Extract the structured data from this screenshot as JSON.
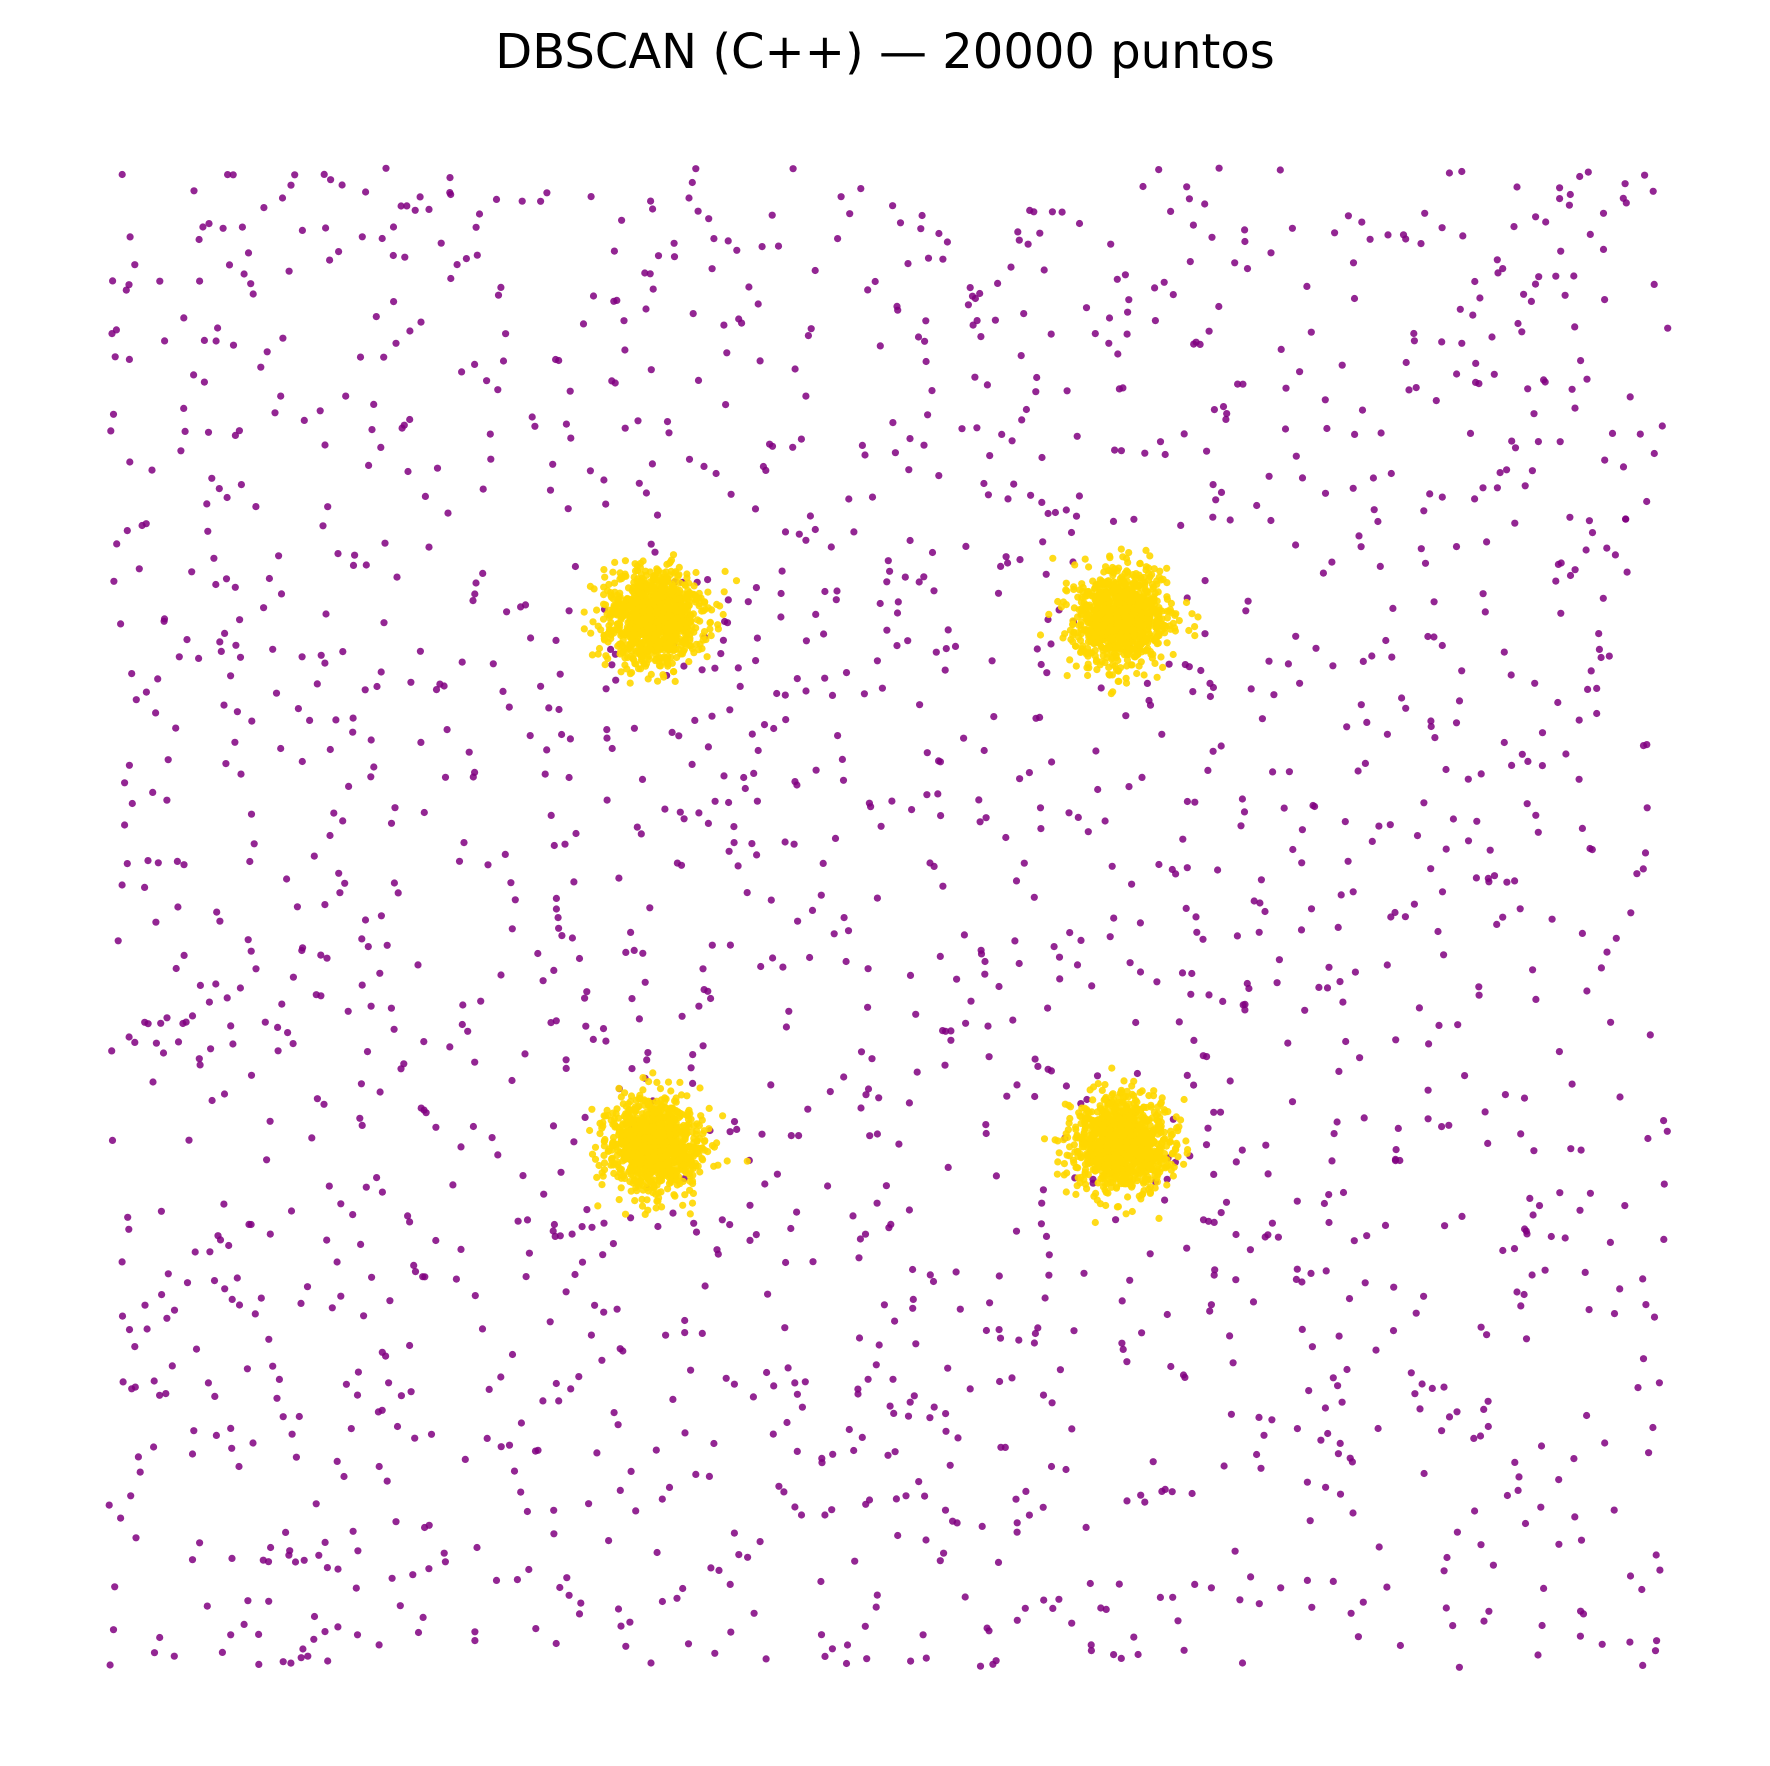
{
  "chart_data": {
    "type": "scatter",
    "title": "DBSCAN (C++) — 20000 puntos",
    "xlabel": "",
    "ylabel": "",
    "axes_visible": false,
    "grid": false,
    "legend": "none",
    "xlim": [
      0,
      100
    ],
    "ylim": [
      0,
      100
    ],
    "series": [
      {
        "color": "#800080",
        "role": "noise",
        "distribution": "uniform",
        "x_range": [
          0,
          100
        ],
        "y_range": [
          0,
          100
        ]
      },
      {
        "color": "#FFD700",
        "role": "clusters",
        "distribution": "gaussian",
        "centers": [
          [
            35,
            70
          ],
          [
            65,
            70
          ],
          [
            35,
            35
          ],
          [
            65,
            35
          ]
        ],
        "spread": 1.5
      }
    ]
  }
}
